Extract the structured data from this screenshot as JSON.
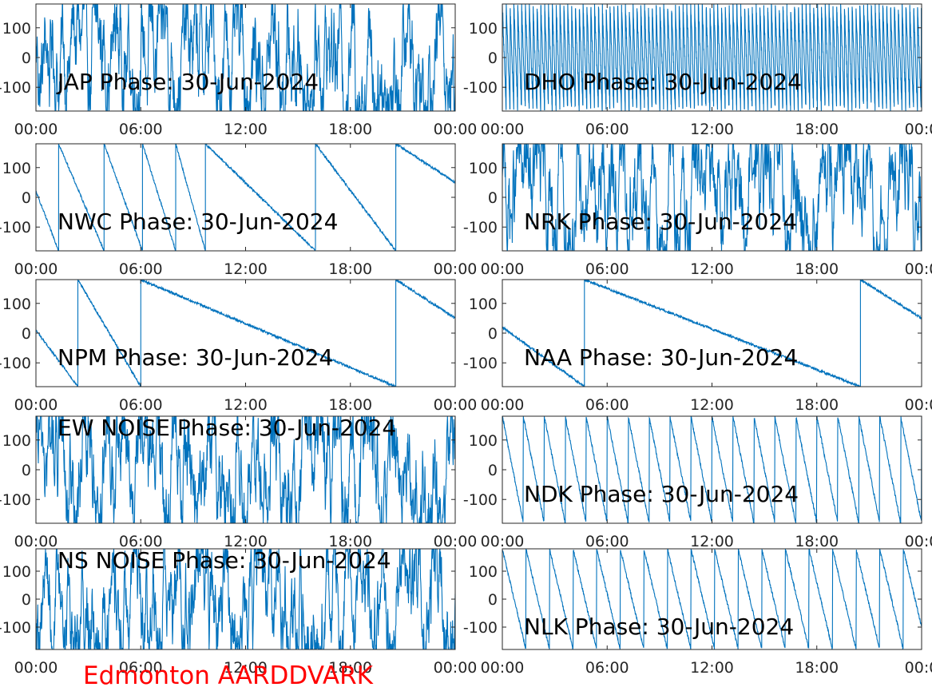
{
  "footer": {
    "station_label": "Edmonton AARDDVARK"
  },
  "colors": {
    "trace": "#0072bd",
    "axes": "#262626",
    "footer": "#ff0000",
    "title_text": "#000000"
  },
  "chart_data": [
    {
      "type": "line",
      "title": "JAP Phase: 30-Jun-2024",
      "x_tick_labels": [
        "00:00",
        "06:00",
        "12:00",
        "18:00",
        "00:00"
      ],
      "y_tick_labels": [
        "100",
        "0",
        "-100"
      ],
      "y_ticks": [
        100,
        0,
        -100
      ],
      "xlim_hours": [
        0,
        24
      ],
      "ylim": [
        -180,
        180
      ],
      "grid": false,
      "pattern": "noise",
      "y_tick_side": "left"
    },
    {
      "type": "line",
      "title": "DHO Phase: 30-Jun-2024",
      "x_tick_labels": [
        "00:00",
        "06:00",
        "12:00",
        "18:00",
        "00:0"
      ],
      "y_tick_labels": [
        "100",
        "0",
        "-100"
      ],
      "y_ticks": [
        100,
        0,
        -100
      ],
      "xlim_hours": [
        0,
        24
      ],
      "ylim": [
        -180,
        180
      ],
      "grid": false,
      "pattern": "dense-saw",
      "y_tick_side": "left"
    },
    {
      "type": "line",
      "title": "NWC Phase: 30-Jun-2024",
      "x_tick_labels": [
        "00:00",
        "06:00",
        "12:00",
        "18:00",
        "00:00"
      ],
      "y_tick_labels": [
        "100",
        "0",
        "-100"
      ],
      "y_ticks": [
        100,
        0,
        -100
      ],
      "xlim_hours": [
        0,
        24
      ],
      "ylim": [
        -180,
        180
      ],
      "grid": false,
      "pattern": "wraps",
      "breaks_hours": [
        1.3,
        3.9,
        6.1,
        8.0,
        9.7,
        16.0,
        20.6
      ],
      "y_tick_side": "left"
    },
    {
      "type": "line",
      "title": "NRK Phase: 30-Jun-2024",
      "x_tick_labels": [
        "00:00",
        "06:00",
        "12:00",
        "18:00",
        "00:0"
      ],
      "y_tick_labels": [
        "100",
        "0",
        "-100"
      ],
      "y_ticks": [
        100,
        0,
        -100
      ],
      "xlim_hours": [
        0,
        24
      ],
      "ylim": [
        -180,
        180
      ],
      "grid": false,
      "pattern": "noise",
      "y_tick_side": "left"
    },
    {
      "type": "line",
      "title": "NPM Phase: 30-Jun-2024",
      "x_tick_labels": [
        "00:00",
        "06:00",
        "12:00",
        "18:00",
        "00:00"
      ],
      "y_tick_labels": [
        "100",
        "0",
        "-100"
      ],
      "y_ticks": [
        100,
        0,
        -100
      ],
      "xlim_hours": [
        0,
        24
      ],
      "ylim": [
        -180,
        180
      ],
      "grid": false,
      "pattern": "wraps",
      "breaks_hours": [
        2.4,
        6.0,
        20.6
      ],
      "y_tick_side": "left"
    },
    {
      "type": "line",
      "title": "NAA Phase: 30-Jun-2024",
      "x_tick_labels": [
        "00:00",
        "06:00",
        "12:00",
        "18:00",
        "00:0"
      ],
      "y_tick_labels": [
        "100",
        "0",
        "-100"
      ],
      "y_ticks": [
        100,
        0,
        -100
      ],
      "xlim_hours": [
        0,
        24
      ],
      "ylim": [
        -180,
        180
      ],
      "grid": false,
      "pattern": "wraps",
      "breaks_hours": [
        4.7,
        20.5
      ],
      "y_tick_side": "left"
    },
    {
      "type": "line",
      "title": "EW NOISE Phase: 30-Jun-2024",
      "x_tick_labels": [
        "00:00",
        "06:00",
        "12:00",
        "18:00",
        "00:00"
      ],
      "y_tick_labels": [
        "100",
        "0",
        "-100"
      ],
      "y_ticks": [
        100,
        0,
        -100
      ],
      "xlim_hours": [
        0,
        24
      ],
      "ylim": [
        -180,
        180
      ],
      "grid": false,
      "pattern": "noise",
      "y_tick_side": "left"
    },
    {
      "type": "line",
      "title": "NDK Phase: 30-Jun-2024",
      "x_tick_labels": [
        "00:00",
        "06:00",
        "12:00",
        "18:00",
        "00:0"
      ],
      "y_tick_labels": [
        "100",
        "0",
        "-100"
      ],
      "y_ticks": [
        100,
        0,
        -100
      ],
      "xlim_hours": [
        0,
        24
      ],
      "ylim": [
        -180,
        180
      ],
      "grid": false,
      "pattern": "saw",
      "period_hours": 1.2,
      "y_tick_side": "left"
    },
    {
      "type": "line",
      "title": "NS NOISE Phase: 30-Jun-2024",
      "x_tick_labels": [
        "00:00",
        "06:00",
        "12:00",
        "18:00",
        "00:00"
      ],
      "y_tick_labels": [
        "100",
        "0",
        "-100"
      ],
      "y_ticks": [
        100,
        0,
        -100
      ],
      "xlim_hours": [
        0,
        24
      ],
      "ylim": [
        -180,
        180
      ],
      "grid": false,
      "pattern": "noise",
      "y_tick_side": "left"
    },
    {
      "type": "line",
      "title": "NLK Phase: 30-Jun-2024",
      "x_tick_labels": [
        "00:00",
        "06:00",
        "12:00",
        "18:00",
        "00:0"
      ],
      "y_tick_labels": [
        "100",
        "0",
        "-100"
      ],
      "y_ticks": [
        100,
        0,
        -100
      ],
      "xlim_hours": [
        0,
        24
      ],
      "ylim": [
        -180,
        180
      ],
      "grid": false,
      "pattern": "saw",
      "period_hours": 1.35,
      "y_tick_side": "left"
    }
  ]
}
